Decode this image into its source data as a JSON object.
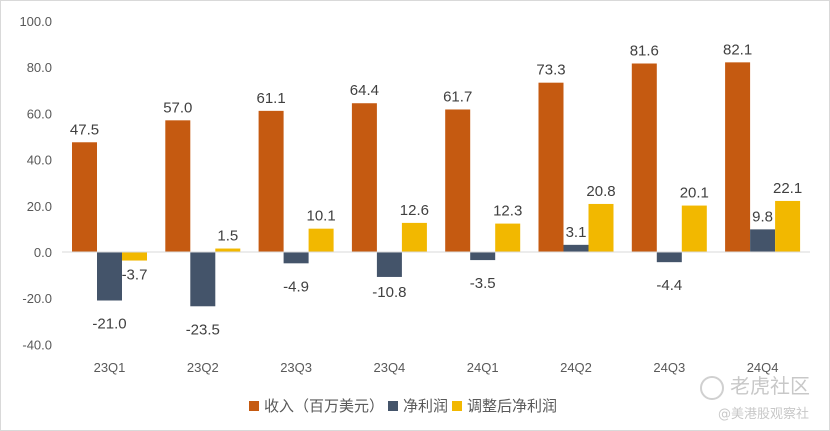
{
  "chart_data": {
    "type": "bar",
    "categories": [
      "23Q1",
      "23Q2",
      "23Q3",
      "23Q4",
      "24Q1",
      "24Q2",
      "24Q3",
      "24Q4"
    ],
    "series": [
      {
        "name": "收入（百万美元）",
        "color": "#C55A11",
        "values": [
          47.5,
          57.0,
          61.1,
          64.4,
          61.7,
          73.3,
          81.6,
          82.1
        ]
      },
      {
        "name": "净利润",
        "color": "#44546A",
        "values": [
          -21.0,
          -23.5,
          -4.9,
          -10.8,
          -3.5,
          3.1,
          -4.4,
          9.8
        ]
      },
      {
        "name": "调整后净利润",
        "color": "#F2B800",
        "values": [
          -3.7,
          1.5,
          10.1,
          12.6,
          12.3,
          20.8,
          20.1,
          22.1
        ]
      }
    ],
    "ylim": [
      -40,
      100
    ],
    "yticks": [
      "100.0",
      "80.0",
      "60.0",
      "40.0",
      "20.0",
      "0.0",
      "-20.0",
      "-40.0"
    ],
    "grid": false,
    "legend": "bottom",
    "title": "",
    "xlabel": "",
    "ylabel": ""
  },
  "watermark": {
    "logo": "老虎社区",
    "handle": "@美港股观察社"
  }
}
